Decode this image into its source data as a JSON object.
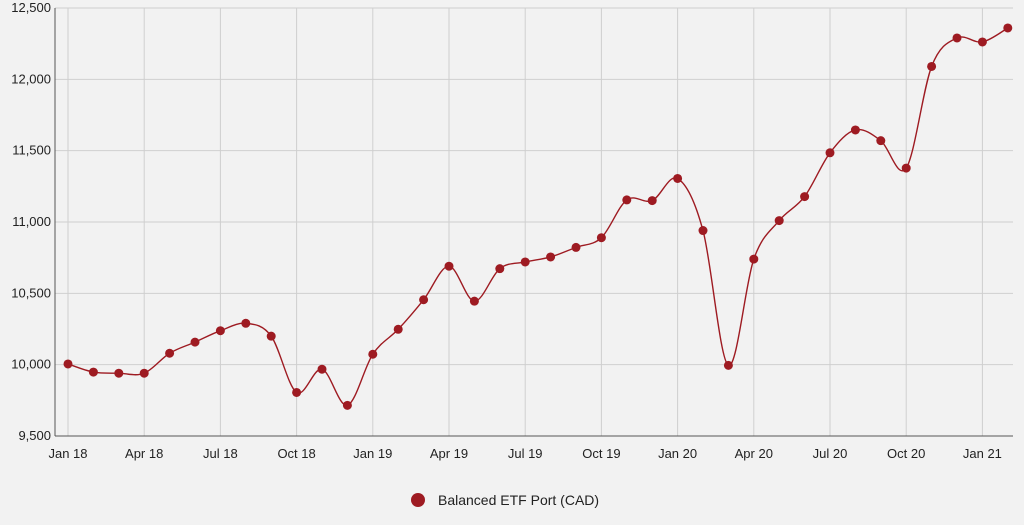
{
  "chart_data": {
    "type": "line",
    "title": "",
    "xlabel": "",
    "ylabel": "",
    "ylim": [
      9500,
      12500
    ],
    "yticks": [
      "9,500",
      "10,000",
      "10,500",
      "11,000",
      "11,500",
      "12,000",
      "12,500"
    ],
    "ytick_values": [
      9500,
      10000,
      10500,
      11000,
      11500,
      12000,
      12500
    ],
    "xticks": [
      "Jan 18",
      "Apr 18",
      "Jul 18",
      "Oct 18",
      "Jan 19",
      "Apr 19",
      "Jul 19",
      "Oct 19",
      "Jan 20",
      "Apr 20",
      "Jul 20",
      "Oct 20",
      "Jan 21"
    ],
    "x": [
      "Jan 18",
      "Feb 18",
      "Mar 18",
      "Apr 18",
      "May 18",
      "Jun 18",
      "Jul 18",
      "Aug 18",
      "Sep 18",
      "Oct 18",
      "Nov 18",
      "Dec 18",
      "Jan 19",
      "Feb 19",
      "Mar 19",
      "Apr 19",
      "May 19",
      "Jun 19",
      "Jul 19",
      "Aug 19",
      "Sep 19",
      "Oct 19",
      "Nov 19",
      "Dec 19",
      "Jan 20",
      "Feb 20",
      "Mar 20",
      "Apr 20",
      "May 20",
      "Jun 20",
      "Jul 20",
      "Aug 20",
      "Sep 20",
      "Oct 20",
      "Nov 20",
      "Dec 20",
      "Jan 21",
      "Feb 21"
    ],
    "grid": true,
    "legend_position": "bottom-center",
    "series": [
      {
        "name": "Balanced ETF Port (CAD)",
        "color": "#9e1b22",
        "values": [
          10005,
          9948,
          9940,
          9940,
          10080,
          10158,
          10238,
          10290,
          10200,
          9805,
          9968,
          9715,
          10073,
          10248,
          10455,
          10690,
          10445,
          10673,
          10720,
          10755,
          10822,
          10890,
          11155,
          11150,
          11305,
          10940,
          9995,
          10740,
          11010,
          11178,
          11485,
          11645,
          11570,
          11378,
          12090,
          12290,
          12262,
          12360
        ]
      }
    ]
  }
}
